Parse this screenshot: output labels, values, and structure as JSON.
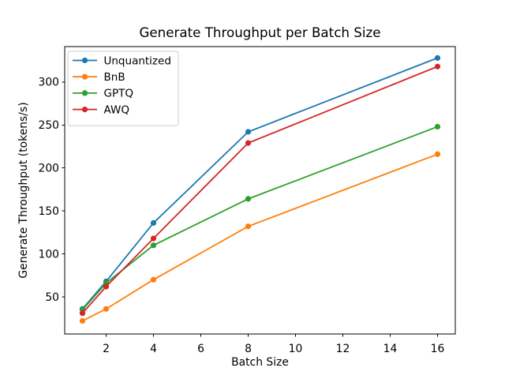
{
  "figure": {
    "background": "#ffffff"
  },
  "chart_data": {
    "type": "line",
    "title": "Generate Throughput per Batch Size",
    "xlabel": "Batch Size",
    "ylabel": "Generate Throughput (tokens/s)",
    "x": [
      1,
      2,
      4,
      8,
      16
    ],
    "series": [
      {
        "name": "Unquantized",
        "color": "#1f77b4",
        "values": [
          36,
          68,
          136,
          242,
          328
        ]
      },
      {
        "name": "BnB",
        "color": "#ff7f0e",
        "values": [
          22,
          36,
          70,
          132,
          216
        ]
      },
      {
        "name": "GPTQ",
        "color": "#2ca02c",
        "values": [
          35,
          66,
          110,
          164,
          248
        ]
      },
      {
        "name": "AWQ",
        "color": "#d62728",
        "values": [
          31,
          62,
          118,
          229,
          318
        ]
      }
    ],
    "xticks": [
      2,
      4,
      6,
      8,
      10,
      12,
      14,
      16
    ],
    "yticks": [
      50,
      100,
      150,
      200,
      250,
      300
    ],
    "xlim": [
      0.25,
      16.75
    ],
    "ylim": [
      6.8,
      341.2
    ],
    "grid": false,
    "marker": "o",
    "legend": {
      "position": "upper left",
      "entries": [
        "Unquantized",
        "BnB",
        "GPTQ",
        "AWQ"
      ]
    },
    "axis_color": "#000000",
    "legend_border_color": "#cccccc"
  }
}
